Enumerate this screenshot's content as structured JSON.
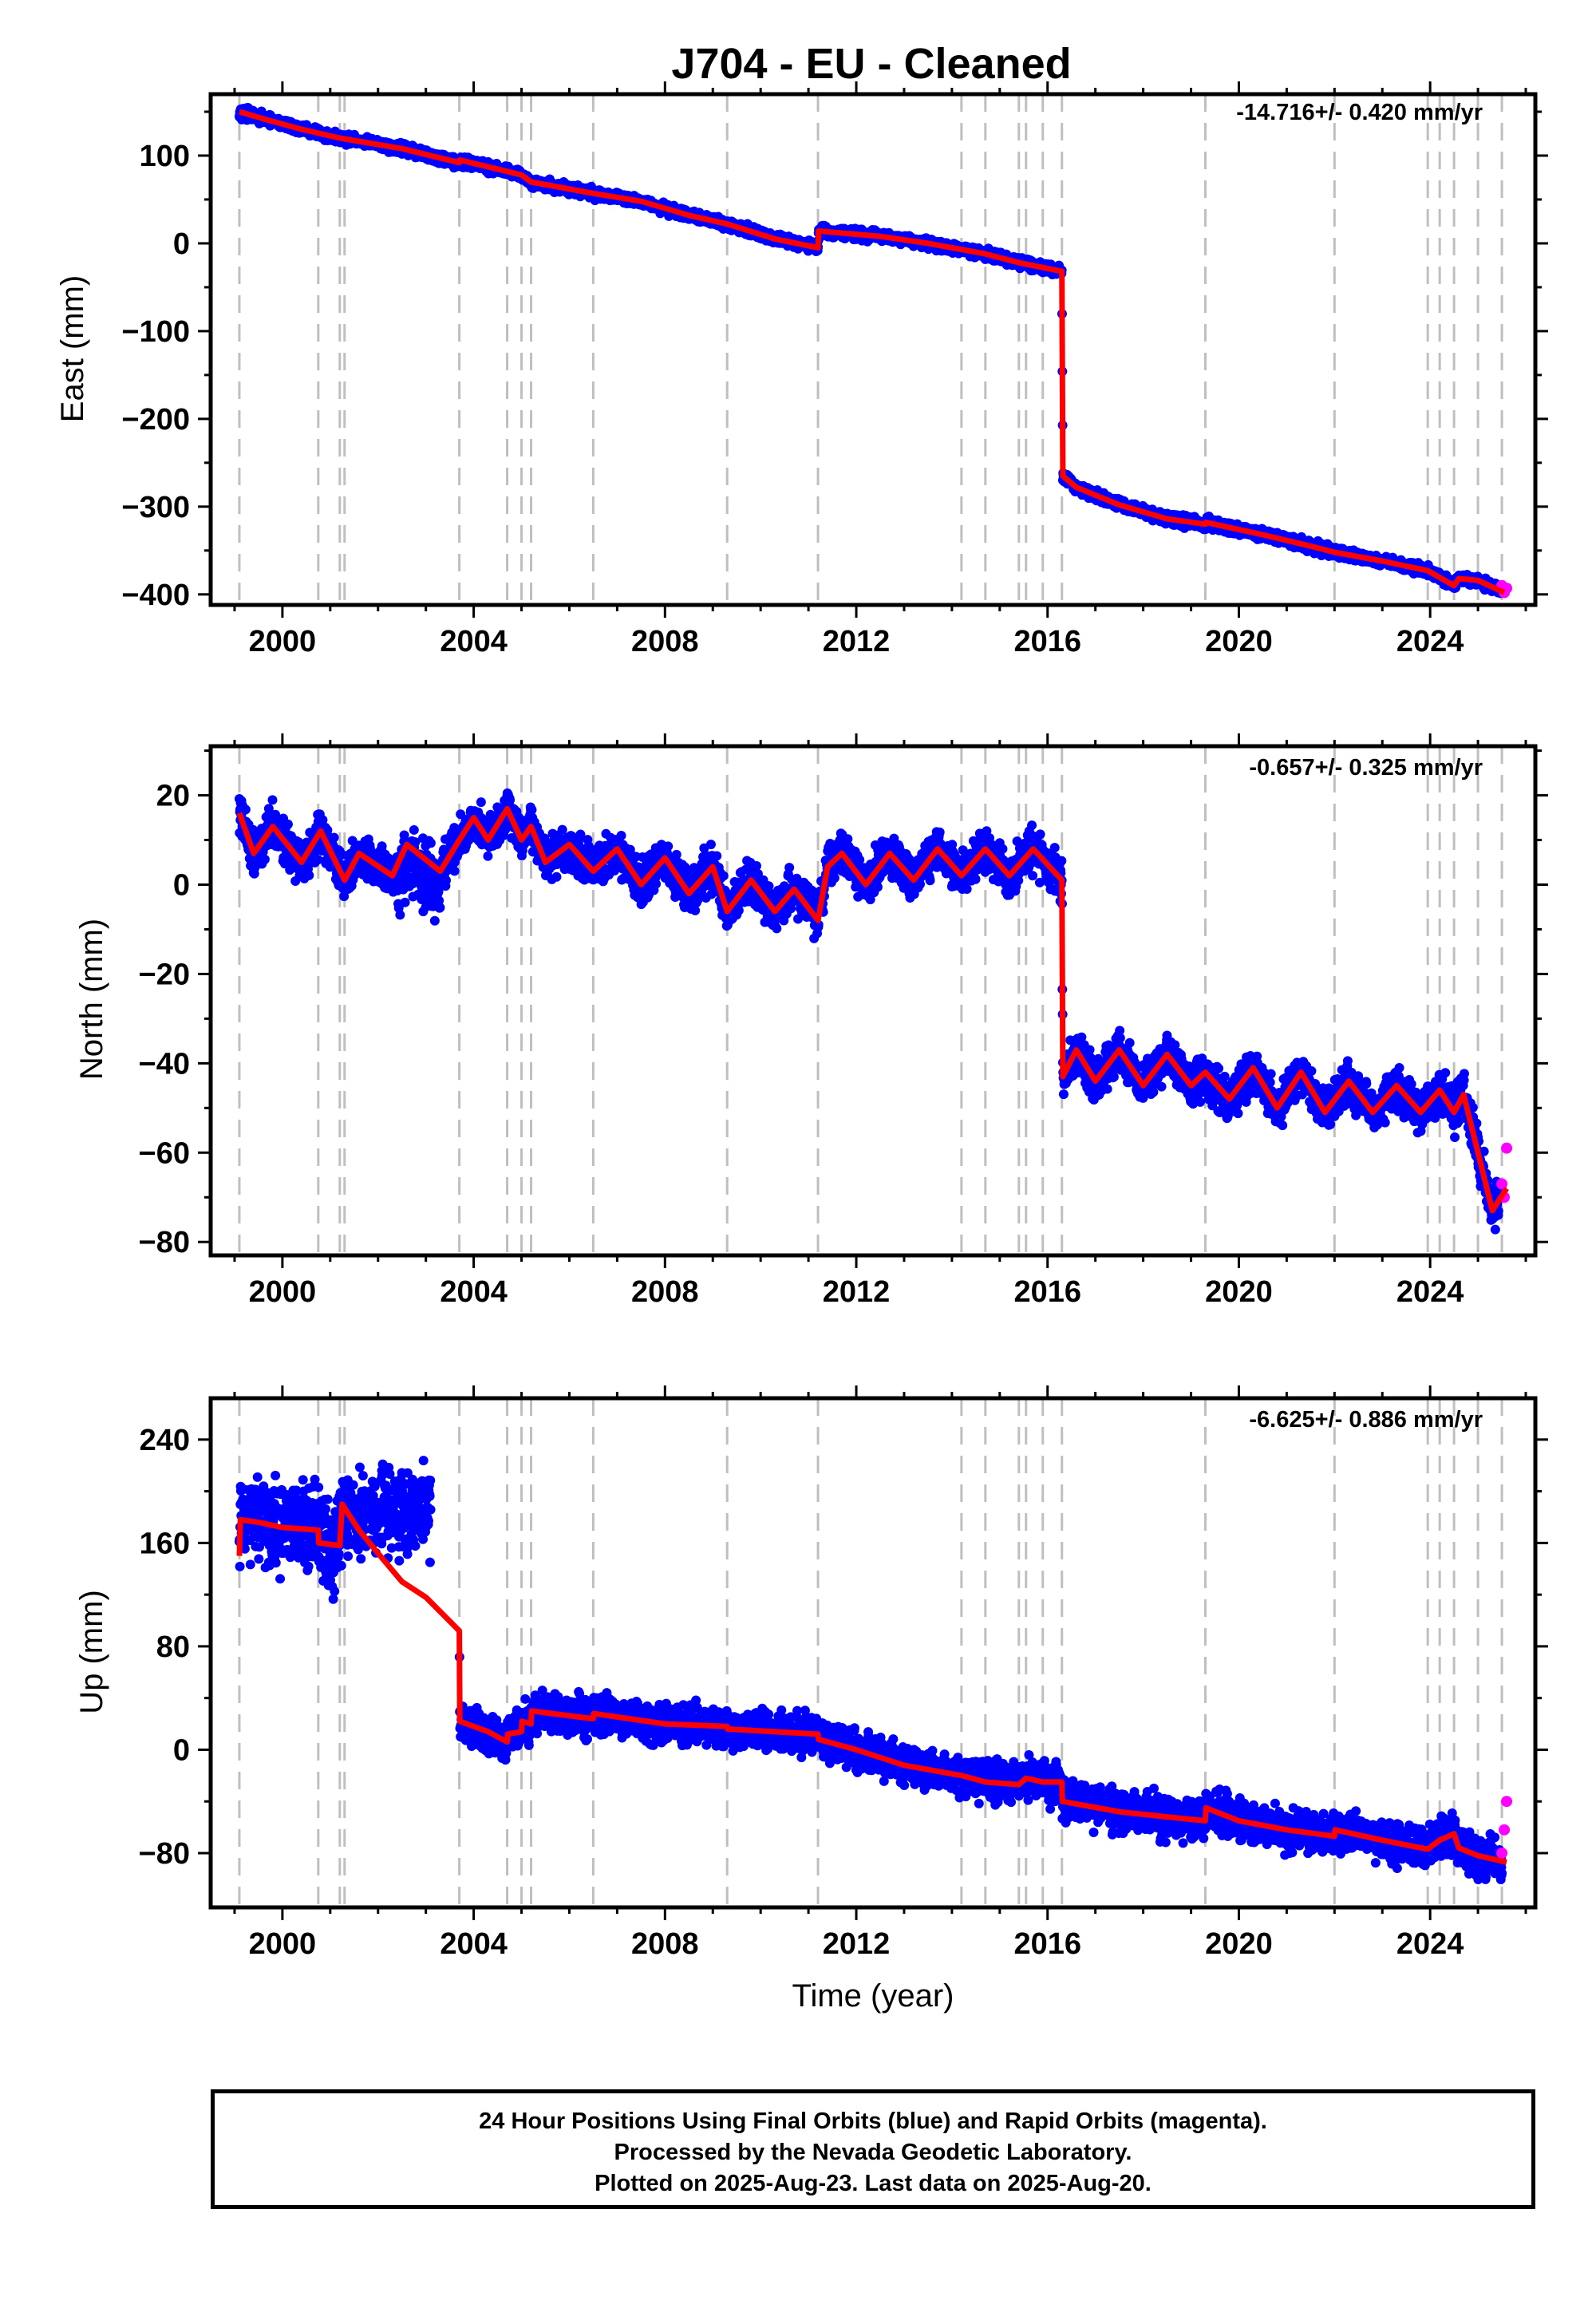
{
  "title": "J704  - EU - Cleaned",
  "xlabel": "Time (year)",
  "footer": {
    "line1": "24 Hour Positions Using Final Orbits (blue) and Rapid Orbits (magenta).",
    "line2": "Processed by the Nevada Geodetic Laboratory.",
    "line3": "Plotted on 2025-Aug-23. Last data on 2025-Aug-20."
  },
  "colors": {
    "final_orbits": "#0000ff",
    "rapid_orbits": "#ff00ff",
    "model": "#ff0000",
    "event_lines": "#bfbfbf"
  },
  "chart_data": [
    {
      "type": "scatter",
      "component": "east",
      "ylabel": "East (mm)",
      "rate": "-14.716+/- 0.420 mm/yr",
      "xlim": [
        1998.5,
        2026.2
      ],
      "ylim": [
        -412,
        170
      ],
      "xticks": [
        2000,
        2004,
        2008,
        2012,
        2016,
        2020,
        2024
      ],
      "yticks": [
        -400,
        -300,
        -200,
        -100,
        0,
        100
      ],
      "ytick_labels": [
        "−400",
        "−300",
        "−200",
        "−100",
        "0",
        "100"
      ],
      "event_lines": [
        1999.1,
        2000.75,
        2001.2,
        2001.3,
        2003.7,
        2004.7,
        2005.0,
        2005.2,
        2006.5,
        2009.3,
        2011.2,
        2014.2,
        2014.7,
        2015.4,
        2015.55,
        2015.9,
        2016.3,
        2019.3,
        2022.0,
        2023.95,
        2024.2,
        2024.5,
        2025.0,
        2025.5
      ],
      "model": [
        [
          1999.1,
          150
        ],
        [
          1999.6,
          142
        ],
        [
          2000.4,
          130
        ],
        [
          2001.2,
          120
        ],
        [
          2002.5,
          108
        ],
        [
          2003.7,
          92
        ],
        [
          2003.71,
          95
        ],
        [
          2004.7,
          82
        ],
        [
          2005.0,
          78
        ],
        [
          2005.2,
          70
        ],
        [
          2006.5,
          57
        ],
        [
          2007.5,
          48
        ],
        [
          2008.5,
          32
        ],
        [
          2009.3,
          22
        ],
        [
          2010.3,
          5
        ],
        [
          2011.2,
          -5
        ],
        [
          2011.21,
          14
        ],
        [
          2012.5,
          8
        ],
        [
          2013.5,
          0
        ],
        [
          2014.7,
          -12
        ],
        [
          2015.4,
          -22
        ],
        [
          2016.3,
          -32
        ],
        [
          2016.32,
          -265
        ],
        [
          2016.6,
          -278
        ],
        [
          2017.5,
          -298
        ],
        [
          2018.5,
          -314
        ],
        [
          2019.3,
          -320
        ],
        [
          2019.31,
          -318
        ],
        [
          2020.5,
          -332
        ],
        [
          2021.5,
          -345
        ],
        [
          2022.0,
          -352
        ],
        [
          2023.0,
          -362
        ],
        [
          2023.95,
          -373
        ],
        [
          2024.5,
          -390
        ],
        [
          2024.6,
          -382
        ],
        [
          2025.0,
          -384
        ],
        [
          2025.55,
          -398
        ]
      ],
      "rapid_points": [
        [
          2025.5,
          -390
        ],
        [
          2025.55,
          -398
        ],
        [
          2025.6,
          -393
        ]
      ],
      "noise": 3.5
    },
    {
      "type": "scatter",
      "component": "north",
      "ylabel": "North (mm)",
      "rate": "-0.657+/- 0.325 mm/yr",
      "xlim": [
        1998.5,
        2026.2
      ],
      "ylim": [
        -83,
        31
      ],
      "xticks": [
        2000,
        2004,
        2008,
        2012,
        2016,
        2020,
        2024
      ],
      "yticks": [
        -80,
        -60,
        -40,
        -20,
        0,
        20
      ],
      "ytick_labels": [
        "−80",
        "−60",
        "−40",
        "−20",
        "0",
        "20"
      ],
      "event_lines": [
        1999.1,
        2000.75,
        2001.2,
        2001.3,
        2003.7,
        2004.7,
        2005.0,
        2005.2,
        2006.5,
        2009.3,
        2011.2,
        2014.2,
        2014.7,
        2015.4,
        2015.55,
        2015.9,
        2016.3,
        2019.3,
        2022.0,
        2023.95,
        2024.2,
        2024.5,
        2025.0,
        2025.5
      ],
      "model": [
        [
          1999.1,
          16
        ],
        [
          1999.4,
          7
        ],
        [
          1999.8,
          13
        ],
        [
          2000.4,
          5
        ],
        [
          2000.8,
          12
        ],
        [
          2001.3,
          1
        ],
        [
          2001.6,
          7
        ],
        [
          2002.3,
          2
        ],
        [
          2002.6,
          9
        ],
        [
          2003.3,
          3
        ],
        [
          2003.7,
          10
        ],
        [
          2004.0,
          15
        ],
        [
          2004.3,
          10
        ],
        [
          2004.7,
          17
        ],
        [
          2005.0,
          10
        ],
        [
          2005.2,
          13
        ],
        [
          2005.5,
          5
        ],
        [
          2006.0,
          9
        ],
        [
          2006.5,
          3
        ],
        [
          2007.0,
          8
        ],
        [
          2007.5,
          0
        ],
        [
          2008.0,
          6
        ],
        [
          2008.5,
          -2
        ],
        [
          2009.0,
          4
        ],
        [
          2009.3,
          -6
        ],
        [
          2009.8,
          1
        ],
        [
          2010.3,
          -6
        ],
        [
          2010.7,
          -1
        ],
        [
          2011.2,
          -8
        ],
        [
          2011.4,
          4
        ],
        [
          2011.7,
          7
        ],
        [
          2012.2,
          0
        ],
        [
          2012.7,
          7
        ],
        [
          2013.2,
          1
        ],
        [
          2013.7,
          8
        ],
        [
          2014.2,
          2
        ],
        [
          2014.7,
          8
        ],
        [
          2015.2,
          2
        ],
        [
          2015.7,
          8
        ],
        [
          2016.3,
          1
        ],
        [
          2016.32,
          -43
        ],
        [
          2016.6,
          -37
        ],
        [
          2017.0,
          -44
        ],
        [
          2017.5,
          -37
        ],
        [
          2018.0,
          -45
        ],
        [
          2018.5,
          -38
        ],
        [
          2019.0,
          -45
        ],
        [
          2019.3,
          -42
        ],
        [
          2019.8,
          -48
        ],
        [
          2020.3,
          -41
        ],
        [
          2020.8,
          -50
        ],
        [
          2021.3,
          -42
        ],
        [
          2021.8,
          -51
        ],
        [
          2022.3,
          -44
        ],
        [
          2022.8,
          -51
        ],
        [
          2023.3,
          -45
        ],
        [
          2023.8,
          -51
        ],
        [
          2024.2,
          -46
        ],
        [
          2024.5,
          -51
        ],
        [
          2024.7,
          -47
        ],
        [
          2025.0,
          -60
        ],
        [
          2025.3,
          -73
        ],
        [
          2025.6,
          -68
        ]
      ],
      "rapid_points": [
        [
          2025.5,
          -67
        ],
        [
          2025.55,
          -70
        ],
        [
          2025.6,
          -59
        ]
      ],
      "noise": 2.8
    },
    {
      "type": "scatter",
      "component": "up",
      "ylabel": "Up (mm)",
      "rate": "-6.625+/- 0.886 mm/yr",
      "xlim": [
        1998.5,
        2026.2
      ],
      "ylim": [
        -122,
        272
      ],
      "xticks": [
        2000,
        2004,
        2008,
        2012,
        2016,
        2020,
        2024
      ],
      "yticks": [
        -80,
        0,
        80,
        160,
        240
      ],
      "ytick_labels": [
        "−80",
        "0",
        "80",
        "160",
        "240"
      ],
      "event_lines": [
        1999.1,
        2000.75,
        2001.2,
        2001.3,
        2003.7,
        2004.7,
        2005.0,
        2005.2,
        2006.5,
        2009.3,
        2011.2,
        2014.2,
        2014.7,
        2015.4,
        2015.55,
        2015.9,
        2016.3,
        2019.3,
        2022.0,
        2023.95,
        2024.2,
        2024.5,
        2025.0,
        2025.5
      ],
      "model": [
        [
          1999.1,
          150
        ],
        [
          1999.12,
          178
        ],
        [
          1999.5,
          176
        ],
        [
          2000.0,
          172
        ],
        [
          2000.75,
          170
        ],
        [
          2000.76,
          160
        ],
        [
          2001.2,
          158
        ],
        [
          2001.25,
          190
        ],
        [
          2001.6,
          170
        ],
        [
          2002.0,
          152
        ],
        [
          2002.5,
          130
        ],
        [
          2003.0,
          118
        ],
        [
          2003.7,
          92
        ],
        [
          2003.71,
          22
        ],
        [
          2004.3,
          14
        ],
        [
          2004.7,
          6
        ],
        [
          2004.71,
          12
        ],
        [
          2005.0,
          14
        ],
        [
          2005.01,
          22
        ],
        [
          2005.2,
          20
        ],
        [
          2005.21,
          30
        ],
        [
          2006.5,
          24
        ],
        [
          2006.51,
          28
        ],
        [
          2008.0,
          20
        ],
        [
          2009.3,
          18
        ],
        [
          2009.31,
          16
        ],
        [
          2011.2,
          12
        ],
        [
          2011.21,
          8
        ],
        [
          2012.0,
          0
        ],
        [
          2013.0,
          -12
        ],
        [
          2014.2,
          -20
        ],
        [
          2014.7,
          -25
        ],
        [
          2015.4,
          -27
        ],
        [
          2015.55,
          -22
        ],
        [
          2015.9,
          -25
        ],
        [
          2016.3,
          -25
        ],
        [
          2016.31,
          -40
        ],
        [
          2017.5,
          -48
        ],
        [
          2018.5,
          -52
        ],
        [
          2019.3,
          -55
        ],
        [
          2019.31,
          -45
        ],
        [
          2020.0,
          -55
        ],
        [
          2021.0,
          -62
        ],
        [
          2022.0,
          -67
        ],
        [
          2022.01,
          -62
        ],
        [
          2023.0,
          -70
        ],
        [
          2023.95,
          -77
        ],
        [
          2024.2,
          -70
        ],
        [
          2024.5,
          -65
        ],
        [
          2024.6,
          -76
        ],
        [
          2025.0,
          -82
        ],
        [
          2025.6,
          -87
        ]
      ],
      "rapid_points": [
        [
          2025.5,
          -80
        ],
        [
          2025.55,
          -62
        ],
        [
          2025.6,
          -40
        ]
      ],
      "noise": 9
    }
  ]
}
